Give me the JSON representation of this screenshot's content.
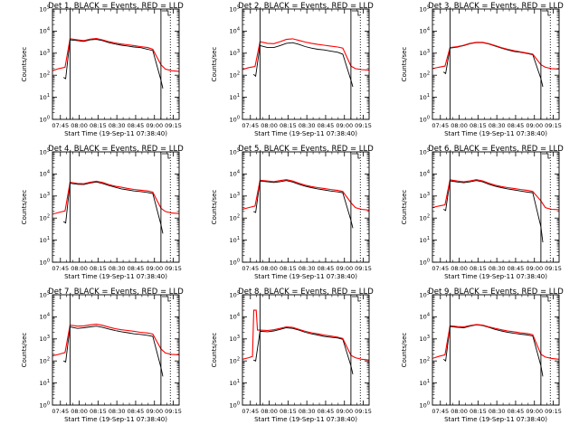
{
  "chart_data": [
    {
      "type": "line",
      "title": "Det 1, BLACK = Events, RED = LLD",
      "xlabel": "Start Time (19-Sep-11 07:38:40)",
      "ylabel": "Counts/sec",
      "xticks": [
        "07:45",
        "08:00",
        "08:15",
        "08:30",
        "08:45",
        "09:00",
        "09:15"
      ],
      "yticks": [
        "10^0",
        "10^1",
        "10^2",
        "10^3",
        "10^4",
        "10^5"
      ],
      "yscale": "log",
      "ylim": [
        1,
        100000
      ],
      "xlim_minutes": [
        0,
        101
      ],
      "series": [
        {
          "color": "#000000",
          "name": "Events",
          "x": [
            8.8,
            10.5,
            14,
            20,
            25,
            30,
            35,
            40,
            45,
            50,
            55,
            60,
            65,
            70,
            76,
            80,
            86.5,
            88
          ],
          "y": [
            80,
            70,
            4000,
            3700,
            3400,
            4000,
            4200,
            3700,
            3000,
            2600,
            2300,
            2100,
            1900,
            1800,
            1500,
            1300,
            60,
            25
          ]
        },
        {
          "color": "#ff0000",
          "name": "LLD",
          "x": [
            0,
            5,
            10,
            14,
            20,
            25,
            30,
            35,
            40,
            45,
            50,
            55,
            60,
            65,
            70,
            76,
            80,
            86.5,
            90,
            95,
            101
          ],
          "y": [
            160,
            200,
            230,
            4500,
            4000,
            3700,
            4300,
            4600,
            4000,
            3300,
            2900,
            2600,
            2400,
            2200,
            2000,
            1800,
            1500,
            300,
            190,
            160,
            150
          ]
        }
      ]
    },
    {
      "type": "line",
      "title": "Det 2, BLACK = Events, RED = LLD",
      "xlabel": "Start Time (19-Sep-11 07:38:40)",
      "ylabel": "Counts/sec",
      "xticks": [
        "07:45",
        "08:00",
        "08:15",
        "08:30",
        "08:45",
        "09:00",
        "09:15"
      ],
      "yticks": [
        "10^0",
        "10^1",
        "10^2",
        "10^3",
        "10^4",
        "10^5"
      ],
      "yscale": "log",
      "ylim": [
        1,
        100000
      ],
      "xlim_minutes": [
        0,
        101
      ],
      "series": [
        {
          "color": "#000000",
          "name": "Events",
          "x": [
            8.8,
            10.5,
            14,
            20,
            25,
            30,
            35,
            40,
            45,
            50,
            55,
            60,
            65,
            70,
            76,
            80,
            86.5,
            88
          ],
          "y": [
            110,
            90,
            2200,
            1800,
            1800,
            2200,
            2800,
            3000,
            2500,
            2000,
            1700,
            1500,
            1400,
            1250,
            1100,
            900,
            60,
            30
          ]
        },
        {
          "color": "#ff0000",
          "name": "LLD",
          "x": [
            0,
            5,
            10,
            14,
            20,
            25,
            30,
            35,
            40,
            45,
            50,
            55,
            60,
            65,
            70,
            76,
            80,
            86.5,
            90,
            95,
            101
          ],
          "y": [
            180,
            220,
            250,
            3300,
            2800,
            2700,
            3300,
            4200,
            4500,
            3800,
            3200,
            2800,
            2500,
            2300,
            2100,
            1900,
            1700,
            260,
            200,
            180,
            170
          ]
        }
      ]
    },
    {
      "type": "line",
      "title": "Det 3, BLACK = Events, RED = LLD",
      "xlabel": "Start Time (19-Sep-11 07:38:40)",
      "ylabel": "Counts/sec",
      "xticks": [
        "07:45",
        "08:00",
        "08:15",
        "08:30",
        "08:45",
        "09:00",
        "09:15"
      ],
      "yticks": [
        "10^0",
        "10^1",
        "10^2",
        "10^3",
        "10^4",
        "10^5"
      ],
      "yscale": "log",
      "ylim": [
        1,
        100000
      ],
      "xlim_minutes": [
        0,
        101
      ],
      "series": [
        {
          "color": "#000000",
          "name": "Events",
          "x": [
            8.8,
            10.5,
            14,
            20,
            25,
            30,
            35,
            40,
            45,
            50,
            55,
            60,
            65,
            70,
            76,
            80,
            86.5,
            88
          ],
          "y": [
            140,
            120,
            1700,
            1900,
            2200,
            2700,
            3000,
            3000,
            2600,
            2100,
            1700,
            1400,
            1200,
            1100,
            950,
            850,
            70,
            30
          ]
        },
        {
          "color": "#ff0000",
          "name": "LLD",
          "x": [
            0,
            5,
            10,
            14,
            20,
            25,
            30,
            35,
            40,
            45,
            50,
            55,
            60,
            65,
            70,
            76,
            80,
            86.5,
            90,
            95,
            101
          ],
          "y": [
            200,
            230,
            260,
            1800,
            2000,
            2300,
            2800,
            3100,
            3100,
            2700,
            2200,
            1800,
            1500,
            1300,
            1150,
            1000,
            900,
            300,
            230,
            200,
            190
          ]
        }
      ]
    },
    {
      "type": "line",
      "title": "Det 4, BLACK = Events, RED = LLD",
      "xlabel": "Start Time (19-Sep-11 07:38:40)",
      "ylabel": "Counts/sec",
      "xticks": [
        "07:45",
        "08:00",
        "08:15",
        "08:30",
        "08:45",
        "09:00",
        "09:15"
      ],
      "yticks": [
        "10^0",
        "10^1",
        "10^2",
        "10^3",
        "10^4",
        "10^5"
      ],
      "yscale": "log",
      "ylim": [
        1,
        100000
      ],
      "xlim_minutes": [
        0,
        101
      ],
      "series": [
        {
          "color": "#000000",
          "name": "Events",
          "x": [
            8.8,
            10.5,
            14,
            20,
            25,
            30,
            35,
            40,
            45,
            50,
            55,
            60,
            65,
            70,
            76,
            80,
            86.5,
            88
          ],
          "y": [
            70,
            60,
            3800,
            3400,
            3300,
            3900,
            4300,
            3700,
            3000,
            2500,
            2100,
            1900,
            1700,
            1600,
            1450,
            1300,
            50,
            20
          ]
        },
        {
          "color": "#ff0000",
          "name": "LLD",
          "x": [
            0,
            5,
            10,
            14,
            20,
            25,
            30,
            35,
            40,
            45,
            50,
            55,
            60,
            65,
            70,
            76,
            80,
            86.5,
            90,
            95,
            101
          ],
          "y": [
            150,
            180,
            210,
            4200,
            3700,
            3600,
            4200,
            4700,
            4100,
            3300,
            2800,
            2500,
            2200,
            2000,
            1850,
            1700,
            1500,
            280,
            200,
            170,
            160
          ]
        }
      ]
    },
    {
      "type": "line",
      "title": "Det 5, BLACK = Events, RED = LLD",
      "xlabel": "Start Time (19-Sep-11 07:38:40)",
      "ylabel": "Counts/sec",
      "xticks": [
        "07:45",
        "08:00",
        "08:15",
        "08:30",
        "08:45",
        "09:00",
        "09:15"
      ],
      "yticks": [
        "10^0",
        "10^1",
        "10^2",
        "10^3",
        "10^4",
        "10^5"
      ],
      "yscale": "log",
      "ylim": [
        1,
        100000
      ],
      "xlim_minutes": [
        0,
        101
      ],
      "series": [
        {
          "color": "#000000",
          "name": "Events",
          "x": [
            8.8,
            10.5,
            14,
            20,
            25,
            30,
            35,
            40,
            45,
            50,
            55,
            60,
            65,
            70,
            76,
            80,
            86.5,
            88
          ],
          "y": [
            200,
            180,
            4800,
            4400,
            4100,
            4500,
            5000,
            4300,
            3400,
            2800,
            2400,
            2100,
            1900,
            1700,
            1550,
            1400,
            80,
            35
          ]
        },
        {
          "color": "#ff0000",
          "name": "LLD",
          "x": [
            0,
            5,
            10,
            14,
            20,
            25,
            30,
            35,
            40,
            45,
            50,
            55,
            60,
            65,
            70,
            76,
            80,
            86.5,
            90,
            95,
            101
          ],
          "y": [
            250,
            300,
            350,
            5200,
            4800,
            4500,
            5000,
            5500,
            4800,
            3800,
            3100,
            2700,
            2400,
            2200,
            2000,
            1800,
            1600,
            500,
            300,
            250,
            230
          ]
        }
      ]
    },
    {
      "type": "line",
      "title": "Det 6, BLACK = Events, RED = LLD",
      "xlabel": "Start Time (19-Sep-11 07:38:40)",
      "ylabel": "Counts/sec",
      "xticks": [
        "07:45",
        "08:00",
        "08:15",
        "08:30",
        "08:45",
        "09:00",
        "09:15"
      ],
      "yticks": [
        "10^0",
        "10^1",
        "10^2",
        "10^3",
        "10^4",
        "10^5"
      ],
      "yscale": "log",
      "ylim": [
        1,
        100000
      ],
      "xlim_minutes": [
        0,
        101
      ],
      "series": [
        {
          "color": "#000000",
          "name": "Events",
          "x": [
            8.8,
            10.5,
            14,
            20,
            25,
            30,
            35,
            40,
            45,
            50,
            55,
            60,
            65,
            70,
            76,
            80,
            86.5,
            88
          ],
          "y": [
            250,
            220,
            4900,
            4300,
            4000,
            4400,
            5000,
            4400,
            3400,
            2800,
            2400,
            2100,
            1900,
            1700,
            1500,
            1400,
            40,
            8
          ]
        },
        {
          "color": "#ff0000",
          "name": "LLD",
          "x": [
            0,
            5,
            10,
            14,
            20,
            25,
            30,
            35,
            40,
            45,
            50,
            55,
            60,
            65,
            70,
            76,
            80,
            86.5,
            90,
            95,
            101
          ],
          "y": [
            300,
            350,
            400,
            5400,
            4800,
            4400,
            4900,
            5500,
            4900,
            3800,
            3100,
            2700,
            2400,
            2200,
            2000,
            1800,
            1600,
            600,
            300,
            250,
            240
          ]
        }
      ]
    },
    {
      "type": "line",
      "title": "Det 7, BLACK = Events, RED = LLD",
      "xlabel": "Start Time (19-Sep-11 07:38:40)",
      "ylabel": "Counts/sec",
      "xticks": [
        "07:45",
        "08:00",
        "08:15",
        "08:30",
        "08:45",
        "09:00",
        "09:15"
      ],
      "yticks": [
        "10^0",
        "10^1",
        "10^2",
        "10^3",
        "10^4",
        "10^5"
      ],
      "yscale": "log",
      "ylim": [
        1,
        100000
      ],
      "xlim_minutes": [
        0,
        101
      ],
      "series": [
        {
          "color": "#000000",
          "name": "Events",
          "x": [
            8.8,
            10.5,
            14,
            20,
            25,
            30,
            35,
            40,
            45,
            50,
            55,
            60,
            65,
            70,
            76,
            80,
            86.5,
            88
          ],
          "y": [
            100,
            90,
            3500,
            3000,
            3200,
            3500,
            3800,
            3300,
            2800,
            2400,
            2100,
            1900,
            1700,
            1600,
            1450,
            1300,
            50,
            20
          ]
        },
        {
          "color": "#ff0000",
          "name": "LLD",
          "x": [
            0,
            5,
            10,
            14,
            20,
            25,
            30,
            35,
            40,
            45,
            50,
            55,
            60,
            65,
            70,
            76,
            80,
            86.5,
            90,
            95,
            101
          ],
          "y": [
            170,
            200,
            240,
            4200,
            3800,
            3900,
            4300,
            4600,
            4100,
            3400,
            2900,
            2600,
            2400,
            2200,
            2000,
            1850,
            1650,
            350,
            230,
            200,
            190
          ]
        }
      ]
    },
    {
      "type": "line",
      "title": "Det 8, BLACK = Events, RED = LLD",
      "xlabel": "Start Time (19-Sep-11 07:38:40)",
      "ylabel": "Counts/sec",
      "xticks": [
        "07:45",
        "08:00",
        "08:15",
        "08:30",
        "08:45",
        "09:00",
        "09:15"
      ],
      "yticks": [
        "10^0",
        "10^1",
        "10^2",
        "10^3",
        "10^4",
        "10^5"
      ],
      "yscale": "log",
      "ylim": [
        1,
        100000
      ],
      "xlim_minutes": [
        0,
        101
      ],
      "series": [
        {
          "color": "#000000",
          "name": "Events",
          "x": [
            8.8,
            10.5,
            14,
            20,
            25,
            30,
            35,
            40,
            45,
            50,
            55,
            60,
            65,
            70,
            76,
            80,
            86.5,
            88
          ],
          "y": [
            110,
            100,
            2200,
            2100,
            2300,
            2700,
            3200,
            3000,
            2500,
            2000,
            1700,
            1500,
            1300,
            1200,
            1100,
            950,
            60,
            25
          ]
        },
        {
          "color": "#ff0000",
          "name": "LLD",
          "x": [
            0,
            5,
            8,
            9,
            11,
            12,
            14,
            20,
            25,
            30,
            35,
            40,
            45,
            50,
            55,
            60,
            65,
            70,
            76,
            80,
            86.5,
            90,
            95,
            101
          ],
          "y": [
            120,
            140,
            160,
            20000,
            20000,
            2500,
            2500,
            2400,
            2600,
            3000,
            3500,
            3300,
            2700,
            2200,
            1900,
            1700,
            1500,
            1350,
            1200,
            1050,
            180,
            140,
            120,
            110
          ]
        }
      ]
    },
    {
      "type": "line",
      "title": "Det 9, BLACK = Events, RED = LLD",
      "xlabel": "Start Time (19-Sep-11 07:38:40)",
      "ylabel": "Counts/sec",
      "xticks": [
        "07:45",
        "08:00",
        "08:15",
        "08:30",
        "08:45",
        "09:00",
        "09:15"
      ],
      "yticks": [
        "10^0",
        "10^1",
        "10^2",
        "10^3",
        "10^4",
        "10^5"
      ],
      "yscale": "log",
      "ylim": [
        1,
        100000
      ],
      "xlim_minutes": [
        0,
        101
      ],
      "series": [
        {
          "color": "#000000",
          "name": "Events",
          "x": [
            8.8,
            10.5,
            14,
            20,
            25,
            30,
            35,
            40,
            45,
            50,
            55,
            60,
            65,
            70,
            76,
            80,
            86.5,
            88
          ],
          "y": [
            120,
            100,
            3600,
            3300,
            3200,
            3800,
            4300,
            4000,
            3300,
            2700,
            2300,
            2000,
            1800,
            1650,
            1500,
            1350,
            60,
            20
          ]
        },
        {
          "color": "#ff0000",
          "name": "LLD",
          "x": [
            0,
            5,
            10,
            14,
            20,
            25,
            30,
            35,
            40,
            45,
            50,
            55,
            60,
            65,
            70,
            76,
            80,
            86.5,
            90,
            95,
            101
          ],
          "y": [
            130,
            160,
            190,
            3900,
            3600,
            3500,
            4000,
            4500,
            4200,
            3500,
            3000,
            2600,
            2300,
            2100,
            1900,
            1750,
            1550,
            200,
            150,
            130,
            120
          ]
        }
      ]
    }
  ]
}
